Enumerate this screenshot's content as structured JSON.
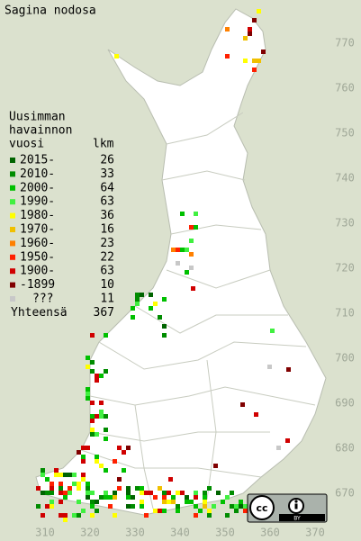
{
  "title": "Sagina nodosa",
  "legend": {
    "heading": [
      "Uusimman",
      "havainnon",
      "vuosi"
    ],
    "count_header": "lkm",
    "rows": [
      {
        "label": "2015-",
        "count": 26,
        "color": "#006400"
      },
      {
        "label": "2010-",
        "count": 33,
        "color": "#008c00"
      },
      {
        "label": "2000-",
        "count": 64,
        "color": "#00c000"
      },
      {
        "label": "1990-",
        "count": 63,
        "color": "#40f040"
      },
      {
        "label": "1980-",
        "count": 36,
        "color": "#ffff00"
      },
      {
        "label": "1970-",
        "count": 16,
        "color": "#f0c000"
      },
      {
        "label": "1960-",
        "count": 23,
        "color": "#ff8000"
      },
      {
        "label": "1950-",
        "count": 22,
        "color": "#ff2000"
      },
      {
        "label": "1900-",
        "count": 63,
        "color": "#d00000"
      },
      {
        "label": "-1899",
        "count": 10,
        "color": "#800000"
      },
      {
        "label": "???",
        "count": 11,
        "color": "#c8c8c8"
      }
    ],
    "total_label": "Yhteensä",
    "total": 367
  },
  "x_axis": {
    "labels": [
      310,
      320,
      330,
      340,
      350,
      360,
      370
    ]
  },
  "y_axis": {
    "labels": [
      670,
      680,
      690,
      700,
      710,
      720,
      730,
      740,
      750,
      760,
      770
    ]
  },
  "license": {
    "cc": "cc",
    "by": "BY"
  }
}
